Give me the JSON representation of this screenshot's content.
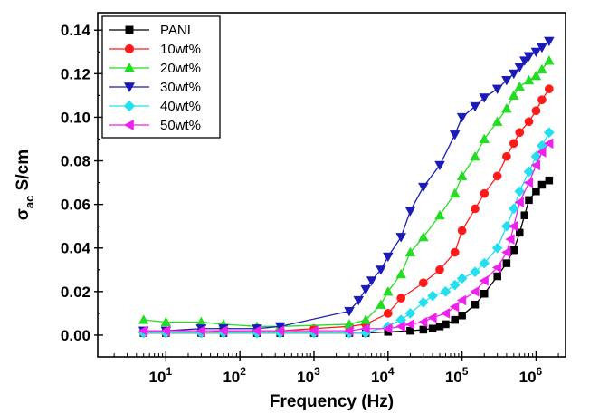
{
  "chart_data": {
    "type": "scatter",
    "xlabel": "Frequency (Hz)",
    "ylabel_main": "σ",
    "ylabel_sub": "ac",
    "ylabel_unit": " S/cm",
    "x_scale": "log",
    "xlim": [
      1.2,
      2500000
    ],
    "ylim": [
      -0.01,
      0.148
    ],
    "x_ticks": [
      {
        "value": 10,
        "base": "10",
        "exp": "1"
      },
      {
        "value": 100,
        "base": "10",
        "exp": "2"
      },
      {
        "value": 1000,
        "base": "10",
        "exp": "3"
      },
      {
        "value": 10000,
        "base": "10",
        "exp": "4"
      },
      {
        "value": 100000,
        "base": "10",
        "exp": "5"
      },
      {
        "value": 1000000,
        "base": "10",
        "exp": "6"
      }
    ],
    "y_ticks": [
      {
        "value": 0.0,
        "label": "0.00"
      },
      {
        "value": 0.02,
        "label": "0.02"
      },
      {
        "value": 0.04,
        "label": "0.04"
      },
      {
        "value": 0.06,
        "label": "0.06"
      },
      {
        "value": 0.08,
        "label": "0.08"
      },
      {
        "value": 0.1,
        "label": "0.10"
      },
      {
        "value": 0.12,
        "label": "0.12"
      },
      {
        "value": 0.14,
        "label": "0.14"
      }
    ],
    "legend_position": "top-left",
    "grid": false,
    "series": [
      {
        "name": "PANI",
        "color": "#000000",
        "marker": "square",
        "x": [
          5,
          10,
          30,
          60,
          170,
          350,
          1000,
          3000,
          5000,
          10000,
          20000,
          30000,
          40000,
          50000,
          60000,
          80000,
          100000,
          150000,
          200000,
          300000,
          400000,
          500000,
          600000,
          700000,
          800000,
          1000000,
          1200000,
          1500000
        ],
        "y": [
          0.001,
          0.001,
          0.001,
          0.001,
          0.001,
          0.001,
          0.001,
          0.001,
          0.001,
          0.0015,
          0.002,
          0.0025,
          0.003,
          0.004,
          0.005,
          0.007,
          0.009,
          0.014,
          0.019,
          0.027,
          0.033,
          0.039,
          0.047,
          0.055,
          0.062,
          0.066,
          0.069,
          0.071
        ]
      },
      {
        "name": "10wt%",
        "color": "#ff1a1a",
        "marker": "circle",
        "x": [
          5,
          10,
          30,
          60,
          170,
          350,
          1000,
          3000,
          5000,
          10000,
          15000,
          30000,
          50000,
          80000,
          100000,
          150000,
          200000,
          300000,
          400000,
          500000,
          600000,
          800000,
          1000000,
          1200000,
          1500000
        ],
        "y": [
          0.001,
          0.001,
          0.001,
          0.002,
          0.002,
          0.002,
          0.003,
          0.004,
          0.005,
          0.01,
          0.017,
          0.024,
          0.03,
          0.038,
          0.048,
          0.058,
          0.065,
          0.073,
          0.082,
          0.088,
          0.093,
          0.098,
          0.103,
          0.108,
          0.113
        ]
      },
      {
        "name": "20wt%",
        "color": "#22dd22",
        "marker": "triangle-up",
        "x": [
          5,
          10,
          30,
          60,
          170,
          350,
          3000,
          5000,
          8000,
          10000,
          15000,
          20000,
          30000,
          50000,
          80000,
          100000,
          150000,
          200000,
          300000,
          400000,
          500000,
          600000,
          800000,
          1000000,
          1200000,
          1500000
        ],
        "y": [
          0.007,
          0.006,
          0.006,
          0.005,
          0.004,
          0.004,
          0.005,
          0.007,
          0.014,
          0.02,
          0.028,
          0.038,
          0.045,
          0.055,
          0.065,
          0.073,
          0.082,
          0.09,
          0.098,
          0.104,
          0.11,
          0.114,
          0.117,
          0.119,
          0.122,
          0.126
        ]
      },
      {
        "name": "30wt%",
        "color": "#1a1ab8",
        "marker": "triangle-down",
        "x": [
          5,
          10,
          30,
          60,
          170,
          350,
          3000,
          4000,
          5000,
          6000,
          8000,
          10000,
          15000,
          20000,
          30000,
          50000,
          80000,
          100000,
          150000,
          200000,
          300000,
          400000,
          500000,
          600000,
          700000,
          800000,
          1000000,
          1200000,
          1500000
        ],
        "y": [
          0.002,
          0.002,
          0.003,
          0.003,
          0.003,
          0.004,
          0.011,
          0.016,
          0.021,
          0.025,
          0.03,
          0.036,
          0.045,
          0.057,
          0.068,
          0.078,
          0.092,
          0.1,
          0.105,
          0.109,
          0.113,
          0.117,
          0.12,
          0.123,
          0.126,
          0.128,
          0.13,
          0.132,
          0.135
        ]
      },
      {
        "name": "40wt%",
        "color": "#22e0f0",
        "marker": "diamond",
        "x": [
          5,
          10,
          30,
          60,
          170,
          350,
          1000,
          3000,
          5000,
          10000,
          15000,
          20000,
          30000,
          40000,
          60000,
          80000,
          100000,
          150000,
          200000,
          300000,
          400000,
          500000,
          600000,
          800000,
          1000000,
          1200000,
          1500000
        ],
        "y": [
          0.001,
          0.001,
          0.001,
          0.001,
          0.001,
          0.001,
          0.001,
          0.001,
          0.001,
          0.004,
          0.007,
          0.01,
          0.015,
          0.018,
          0.02,
          0.023,
          0.026,
          0.029,
          0.033,
          0.04,
          0.05,
          0.058,
          0.066,
          0.075,
          0.082,
          0.087,
          0.093
        ]
      },
      {
        "name": "50wt%",
        "color": "#ee22ee",
        "marker": "triangle-left",
        "x": [
          5,
          10,
          30,
          60,
          170,
          350,
          1000,
          3000,
          5000,
          10000,
          15000,
          20000,
          30000,
          40000,
          60000,
          80000,
          100000,
          150000,
          200000,
          300000,
          400000,
          450000,
          500000,
          600000,
          800000,
          1000000,
          1200000,
          1500000
        ],
        "y": [
          0.002,
          0.002,
          0.002,
          0.002,
          0.002,
          0.002,
          0.002,
          0.002,
          0.003,
          0.003,
          0.004,
          0.005,
          0.006,
          0.008,
          0.01,
          0.013,
          0.016,
          0.02,
          0.025,
          0.031,
          0.038,
          0.044,
          0.05,
          0.061,
          0.07,
          0.078,
          0.084,
          0.088
        ]
      }
    ]
  }
}
